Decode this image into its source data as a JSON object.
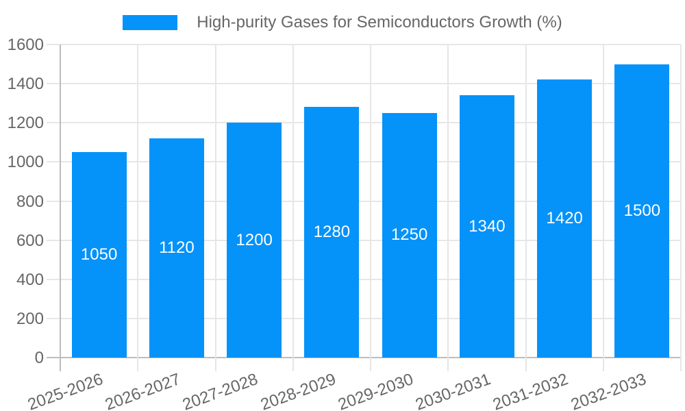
{
  "chart_data": {
    "type": "bar",
    "title": "High-purity Gases for Semiconductors Growth (%)",
    "categories": [
      "2025-2026",
      "2026-2027",
      "2027-2028",
      "2028-2029",
      "2029-2030",
      "2030-2031",
      "2031-2032",
      "2032-2033"
    ],
    "values": [
      1050,
      1120,
      1200,
      1280,
      1250,
      1340,
      1420,
      1500
    ],
    "value_labels": [
      "1050",
      "1120",
      "1200",
      "1280",
      "1250",
      "1340",
      "1420",
      "1500"
    ],
    "xlabel": "",
    "ylabel": "",
    "ylim": [
      0,
      1600
    ],
    "ytick_step": 200,
    "ytick_labels": [
      "0",
      "200",
      "400",
      "600",
      "800",
      "1000",
      "1200",
      "1400",
      "1600"
    ],
    "grid": true,
    "legend_position": "top",
    "colors": {
      "bar": "#0592f9",
      "value_label": "#ffffff",
      "axis_text": "#666666",
      "gridline": "#e6e6e6",
      "axis_line": "#bcbcbc",
      "background": "#ffffff"
    }
  }
}
